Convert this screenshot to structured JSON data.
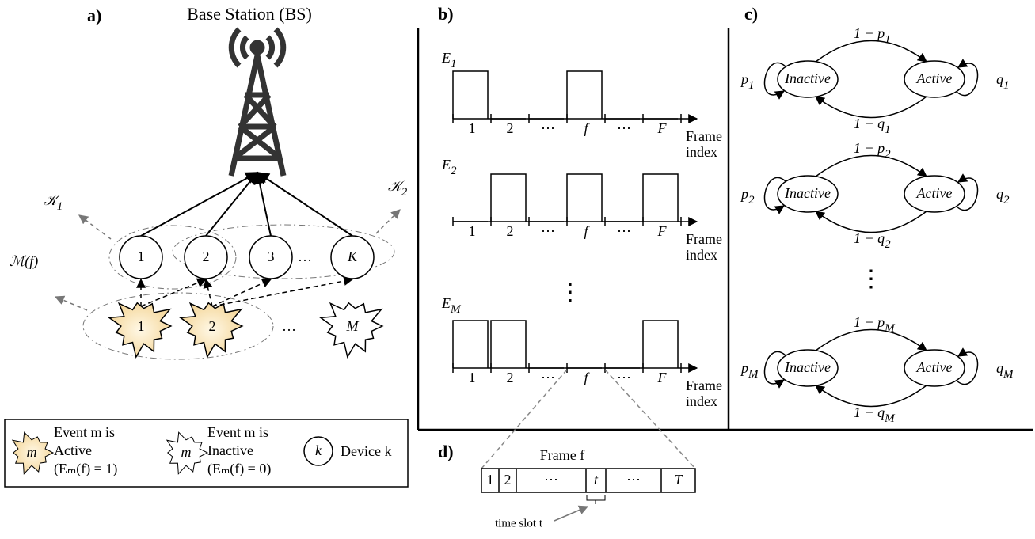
{
  "panel_a": {
    "label": "a)",
    "base_station": "Base Station (BS)",
    "clusters": [
      {
        "base": "𝒦",
        "sub": "1"
      },
      {
        "base": "𝒦",
        "sub": "2"
      }
    ],
    "event_set": "ℳ(f)",
    "devices": [
      "1",
      "2",
      "3",
      "…",
      "K"
    ],
    "events": [
      "1",
      "2",
      "…",
      "M"
    ],
    "legend": {
      "event_symbol": "m",
      "active": [
        "Event m is",
        "Active",
        "(Eₘ(f) = 1)"
      ],
      "inactive": [
        "Event m is",
        "Inactive",
        "(Eₘ(f) = 0)"
      ],
      "device_symbol": "k",
      "device": "Device k"
    }
  },
  "panel_b": {
    "label": "b)",
    "axis_label": [
      "Frame",
      "index"
    ],
    "frames": [
      "1",
      "2",
      "⋯",
      "f",
      "⋯",
      "F"
    ],
    "ellipsis": "⋮",
    "signals": [
      {
        "name": {
          "base": "E",
          "sub": "1"
        },
        "values": [
          1,
          0,
          0,
          1,
          0,
          0
        ]
      },
      {
        "name": {
          "base": "E",
          "sub": "2"
        },
        "values": [
          0,
          1,
          0,
          1,
          0,
          1
        ]
      },
      {
        "name": {
          "base": "E",
          "sub": "M"
        },
        "values": [
          1,
          1,
          0,
          0,
          0,
          1
        ]
      }
    ]
  },
  "panel_c": {
    "label": "c)",
    "states": [
      "Inactive",
      "Active"
    ],
    "ellipsis": "⋮",
    "chains": [
      {
        "top": {
          "base": "1 − p",
          "sub": "1"
        },
        "bottom": {
          "base": "1 − q",
          "sub": "1"
        },
        "left": {
          "base": "p",
          "sub": "1"
        },
        "right": {
          "base": "q",
          "sub": "1"
        }
      },
      {
        "top": {
          "base": "1 − p",
          "sub": "2"
        },
        "bottom": {
          "base": "1 − q",
          "sub": "2"
        },
        "left": {
          "base": "p",
          "sub": "2"
        },
        "right": {
          "base": "q",
          "sub": "2"
        }
      },
      {
        "top": {
          "base": "1 − p",
          "sub": "M"
        },
        "bottom": {
          "base": "1 − q",
          "sub": "M"
        },
        "left": {
          "base": "p",
          "sub": "M"
        },
        "right": {
          "base": "q",
          "sub": "M"
        }
      }
    ]
  },
  "panel_d": {
    "label": "d)",
    "title": "Frame f",
    "slots": [
      "1",
      "2",
      "⋯",
      "t",
      "⋯",
      "T"
    ],
    "slot_label": "time slot t"
  }
}
